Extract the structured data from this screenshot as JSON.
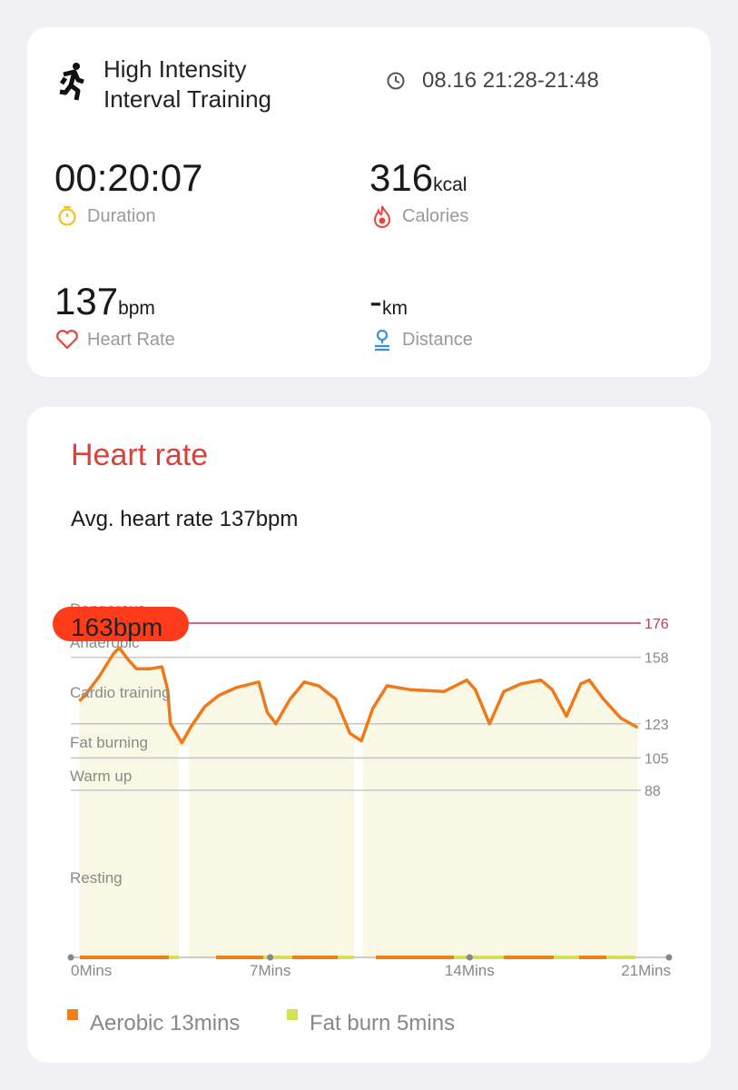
{
  "workout": {
    "title": "High Intensity Interval Training",
    "time": "08.16 21:28-21:48"
  },
  "stats": [
    {
      "value": "00:20:07",
      "label": "Duration"
    },
    {
      "value": "316",
      "unit": "kcal",
      "label": "Calories"
    },
    {
      "value": "137",
      "unit": "bpm",
      "label": "Heart Rate"
    },
    {
      "value": "-",
      "unit": "km",
      "label": "Distance"
    }
  ],
  "heart_rate": {
    "title": "Heart rate",
    "average": "Avg. heart rate 137bpm"
  },
  "chart_data": {
    "type": "line",
    "x": [
      0.3,
      0.5,
      1.0,
      1.5,
      1.7,
      2.0,
      2.3,
      2.8,
      3.2,
      3.4,
      3.5,
      3.9,
      4.2,
      4.7,
      5.2,
      5.8,
      6.6,
      6.9,
      7.2,
      7.7,
      8.2,
      8.7,
      9.3,
      9.8,
      10.2,
      10.6,
      11.1,
      11.9,
      13.1,
      13.9,
      14.2,
      14.7,
      15.2,
      15.8,
      16.5,
      16.9,
      17.4,
      17.9,
      18.2,
      18.7,
      19.3,
      19.9
    ],
    "values": [
      135,
      138,
      148,
      160,
      163,
      157,
      152,
      152,
      153,
      141,
      123,
      113,
      121,
      132,
      138,
      142,
      145,
      129,
      123,
      136,
      145,
      143,
      136,
      118,
      114,
      131,
      143,
      141,
      140,
      146,
      141,
      123,
      140,
      144,
      146,
      141,
      127,
      144,
      146,
      136,
      126,
      121
    ],
    "color": "#ee7a1b",
    "area_color": "#f8f8e4",
    "xlim": [
      0,
      21
    ],
    "xticks": [
      {
        "value": 0,
        "label": "0Mins"
      },
      {
        "value": 7,
        "label": "7Mins"
      },
      {
        "value": 14,
        "label": "14Mins"
      },
      {
        "value": 21,
        "label": "21Mins"
      }
    ],
    "ylim": [
      0,
      176
    ],
    "yticks": [
      88,
      105,
      123,
      158,
      176
    ],
    "grid": true,
    "danger_color": "#c8375a",
    "zones": [
      "Dangerous",
      "Anaerobic",
      "Cardio training",
      "Fat burning",
      "Warm up",
      "Resting"
    ],
    "annotation": "163bpm",
    "annotation_color": "#ff3b1a",
    "legend": [
      {
        "label": "Aerobic 13mins",
        "color": "#f07f1a"
      },
      {
        "label": "Fat burn 5mins",
        "color": "#d4e157"
      }
    ]
  }
}
